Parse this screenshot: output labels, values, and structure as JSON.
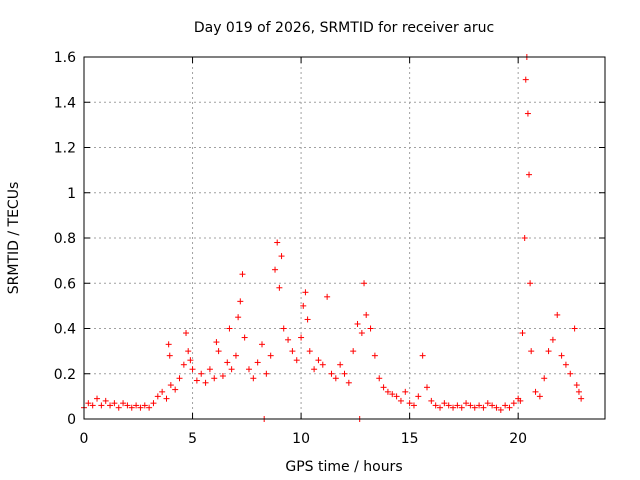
{
  "chart_data": {
    "type": "scatter",
    "title": "Day 019 of 2026, SRMTID for receiver aruc",
    "xlabel": "GPS time / hours",
    "ylabel": "SRMTID / TECUs",
    "xlim": [
      0,
      24
    ],
    "ylim": [
      0,
      1.6
    ],
    "xticks": [
      0,
      5,
      10,
      15,
      20
    ],
    "xtick_labels": [
      "0",
      "5",
      "10",
      "15",
      "20"
    ],
    "yticks": [
      0,
      0.2,
      0.4,
      0.6,
      0.8,
      1,
      1.2,
      1.4,
      1.6
    ],
    "ytick_labels": [
      "0",
      "0.2",
      "0.4",
      "0.6",
      "0.8",
      "1",
      "1.2",
      "1.4",
      "1.6"
    ],
    "grid": true,
    "marker": "+",
    "series": [
      {
        "name": "SRMTID",
        "color": "#ff0000",
        "points": [
          [
            0.0,
            0.05
          ],
          [
            0.2,
            0.07
          ],
          [
            0.4,
            0.06
          ],
          [
            0.6,
            0.09
          ],
          [
            0.8,
            0.06
          ],
          [
            1.0,
            0.08
          ],
          [
            1.2,
            0.06
          ],
          [
            1.4,
            0.07
          ],
          [
            1.6,
            0.05
          ],
          [
            1.8,
            0.07
          ],
          [
            2.0,
            0.06
          ],
          [
            2.2,
            0.05
          ],
          [
            2.4,
            0.06
          ],
          [
            2.6,
            0.05
          ],
          [
            2.8,
            0.06
          ],
          [
            3.0,
            0.05
          ],
          [
            3.2,
            0.07
          ],
          [
            3.4,
            0.1
          ],
          [
            3.6,
            0.12
          ],
          [
            3.8,
            0.09
          ],
          [
            3.9,
            0.33
          ],
          [
            3.95,
            0.28
          ],
          [
            4.0,
            0.15
          ],
          [
            4.2,
            0.13
          ],
          [
            4.4,
            0.18
          ],
          [
            4.6,
            0.24
          ],
          [
            4.7,
            0.38
          ],
          [
            4.8,
            0.3
          ],
          [
            4.9,
            0.26
          ],
          [
            5.0,
            0.22
          ],
          [
            5.2,
            0.17
          ],
          [
            5.4,
            0.2
          ],
          [
            5.6,
            0.16
          ],
          [
            5.8,
            0.22
          ],
          [
            6.0,
            0.18
          ],
          [
            6.1,
            0.34
          ],
          [
            6.2,
            0.3
          ],
          [
            6.4,
            0.19
          ],
          [
            6.6,
            0.25
          ],
          [
            6.7,
            0.4
          ],
          [
            6.8,
            0.22
          ],
          [
            7.0,
            0.28
          ],
          [
            7.1,
            0.45
          ],
          [
            7.2,
            0.52
          ],
          [
            7.3,
            0.64
          ],
          [
            7.4,
            0.36
          ],
          [
            7.6,
            0.22
          ],
          [
            7.8,
            0.18
          ],
          [
            8.0,
            0.25
          ],
          [
            8.2,
            0.33
          ],
          [
            8.3,
            0.0
          ],
          [
            8.4,
            0.2
          ],
          [
            8.6,
            0.28
          ],
          [
            8.8,
            0.66
          ],
          [
            8.9,
            0.78
          ],
          [
            9.0,
            0.58
          ],
          [
            9.1,
            0.72
          ],
          [
            9.2,
            0.4
          ],
          [
            9.4,
            0.35
          ],
          [
            9.6,
            0.3
          ],
          [
            9.8,
            0.26
          ],
          [
            10.0,
            0.36
          ],
          [
            10.1,
            0.5
          ],
          [
            10.2,
            0.56
          ],
          [
            10.3,
            0.44
          ],
          [
            10.4,
            0.3
          ],
          [
            10.6,
            0.22
          ],
          [
            10.8,
            0.26
          ],
          [
            11.0,
            0.24
          ],
          [
            11.2,
            0.54
          ],
          [
            11.4,
            0.2
          ],
          [
            11.6,
            0.18
          ],
          [
            11.8,
            0.24
          ],
          [
            12.0,
            0.2
          ],
          [
            12.2,
            0.16
          ],
          [
            12.4,
            0.3
          ],
          [
            12.6,
            0.42
          ],
          [
            12.7,
            0.0
          ],
          [
            12.8,
            0.38
          ],
          [
            12.9,
            0.6
          ],
          [
            13.0,
            0.46
          ],
          [
            13.2,
            0.4
          ],
          [
            13.4,
            0.28
          ],
          [
            13.6,
            0.18
          ],
          [
            13.8,
            0.14
          ],
          [
            14.0,
            0.12
          ],
          [
            14.2,
            0.11
          ],
          [
            14.4,
            0.1
          ],
          [
            14.6,
            0.08
          ],
          [
            14.8,
            0.12
          ],
          [
            15.0,
            0.07
          ],
          [
            15.2,
            0.06
          ],
          [
            15.4,
            0.1
          ],
          [
            15.6,
            0.28
          ],
          [
            15.8,
            0.14
          ],
          [
            16.0,
            0.08
          ],
          [
            16.2,
            0.06
          ],
          [
            16.4,
            0.05
          ],
          [
            16.6,
            0.07
          ],
          [
            16.8,
            0.06
          ],
          [
            17.0,
            0.05
          ],
          [
            17.2,
            0.06
          ],
          [
            17.4,
            0.05
          ],
          [
            17.6,
            0.07
          ],
          [
            17.8,
            0.06
          ],
          [
            18.0,
            0.05
          ],
          [
            18.2,
            0.06
          ],
          [
            18.4,
            0.05
          ],
          [
            18.6,
            0.07
          ],
          [
            18.8,
            0.06
          ],
          [
            19.0,
            0.05
          ],
          [
            19.2,
            0.04
          ],
          [
            19.4,
            0.06
          ],
          [
            19.6,
            0.05
          ],
          [
            19.8,
            0.07
          ],
          [
            20.0,
            0.09
          ],
          [
            20.1,
            0.08
          ],
          [
            20.2,
            0.38
          ],
          [
            20.3,
            0.8
          ],
          [
            20.35,
            1.5
          ],
          [
            20.4,
            1.6
          ],
          [
            20.45,
            1.35
          ],
          [
            20.5,
            1.08
          ],
          [
            20.55,
            0.6
          ],
          [
            20.6,
            0.3
          ],
          [
            20.8,
            0.12
          ],
          [
            21.0,
            0.1
          ],
          [
            21.2,
            0.18
          ],
          [
            21.4,
            0.3
          ],
          [
            21.6,
            0.35
          ],
          [
            21.8,
            0.46
          ],
          [
            22.0,
            0.28
          ],
          [
            22.2,
            0.24
          ],
          [
            22.4,
            0.2
          ],
          [
            22.6,
            0.4
          ],
          [
            22.7,
            0.15
          ],
          [
            22.8,
            0.12
          ],
          [
            22.9,
            0.09
          ]
        ]
      }
    ]
  }
}
